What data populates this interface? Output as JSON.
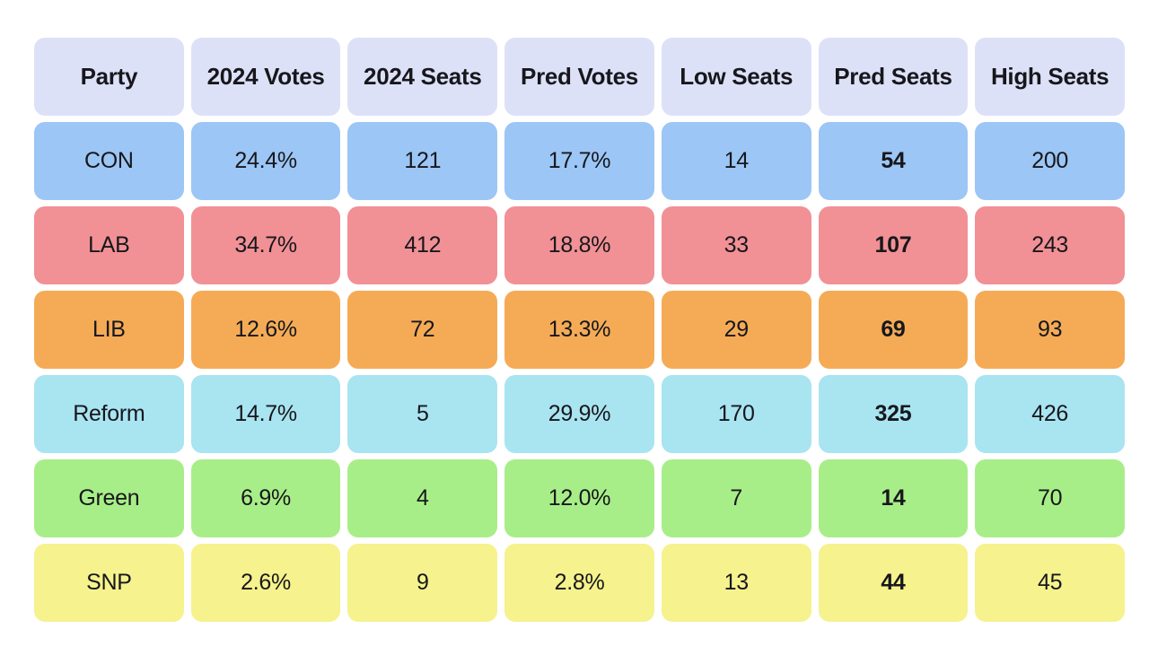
{
  "colors": {
    "background": "#ffffff",
    "header_bg": "#dde1f8",
    "text": "#17171c",
    "row_colors": {
      "CON": "#9cc6f5",
      "LAB": "#f19195",
      "LIB": "#f5ab56",
      "Reform": "#a9e4f1",
      "Green": "#a8ee88",
      "SNP": "#f6f28d"
    }
  },
  "table": {
    "columns": [
      {
        "key": "party",
        "label": "Party"
      },
      {
        "key": "votes-2024",
        "label": "2024 Votes"
      },
      {
        "key": "seats-2024",
        "label": "2024 Seats"
      },
      {
        "key": "pred-votes",
        "label": "Pred Votes"
      },
      {
        "key": "low-seats",
        "label": "Low Seats"
      },
      {
        "key": "pred-seats",
        "label": "Pred Seats"
      },
      {
        "key": "high-seats",
        "label": "High Seats"
      }
    ],
    "bold_column_index": 5,
    "rows": [
      {
        "party": "CON",
        "color": "#9cc6f5",
        "cells": [
          "CON",
          "24.4%",
          "121",
          "17.7%",
          "14",
          "54",
          "200"
        ]
      },
      {
        "party": "LAB",
        "color": "#f19195",
        "cells": [
          "LAB",
          "34.7%",
          "412",
          "18.8%",
          "33",
          "107",
          "243"
        ]
      },
      {
        "party": "LIB",
        "color": "#f5ab56",
        "cells": [
          "LIB",
          "12.6%",
          "72",
          "13.3%",
          "29",
          "69",
          "93"
        ]
      },
      {
        "party": "Reform",
        "color": "#a9e4f1",
        "cells": [
          "Reform",
          "14.7%",
          "5",
          "29.9%",
          "170",
          "325",
          "426"
        ]
      },
      {
        "party": "Green",
        "color": "#a8ee88",
        "cells": [
          "Green",
          "6.9%",
          "4",
          "12.0%",
          "7",
          "14",
          "70"
        ]
      },
      {
        "party": "SNP",
        "color": "#f6f28d",
        "cells": [
          "SNP",
          "2.6%",
          "9",
          "2.8%",
          "13",
          "44",
          "45"
        ]
      }
    ]
  },
  "chart_data": {
    "type": "table",
    "columns": [
      "Party",
      "2024 Votes",
      "2024 Seats",
      "Pred Votes",
      "Low Seats",
      "Pred Seats",
      "High Seats"
    ],
    "rows": [
      [
        "CON",
        "24.4%",
        121,
        "17.7%",
        14,
        54,
        200
      ],
      [
        "LAB",
        "34.7%",
        412,
        "18.8%",
        33,
        107,
        243
      ],
      [
        "LIB",
        "12.6%",
        72,
        "13.3%",
        29,
        69,
        93
      ],
      [
        "Reform",
        "14.7%",
        5,
        "29.9%",
        170,
        325,
        426
      ],
      [
        "Green",
        "6.9%",
        4,
        "12.0%",
        7,
        14,
        70
      ],
      [
        "SNP",
        "2.6%",
        9,
        "2.8%",
        13,
        44,
        45
      ]
    ],
    "notes": "Pred Seats column rendered in bold; each party row tinted with its party color"
  }
}
